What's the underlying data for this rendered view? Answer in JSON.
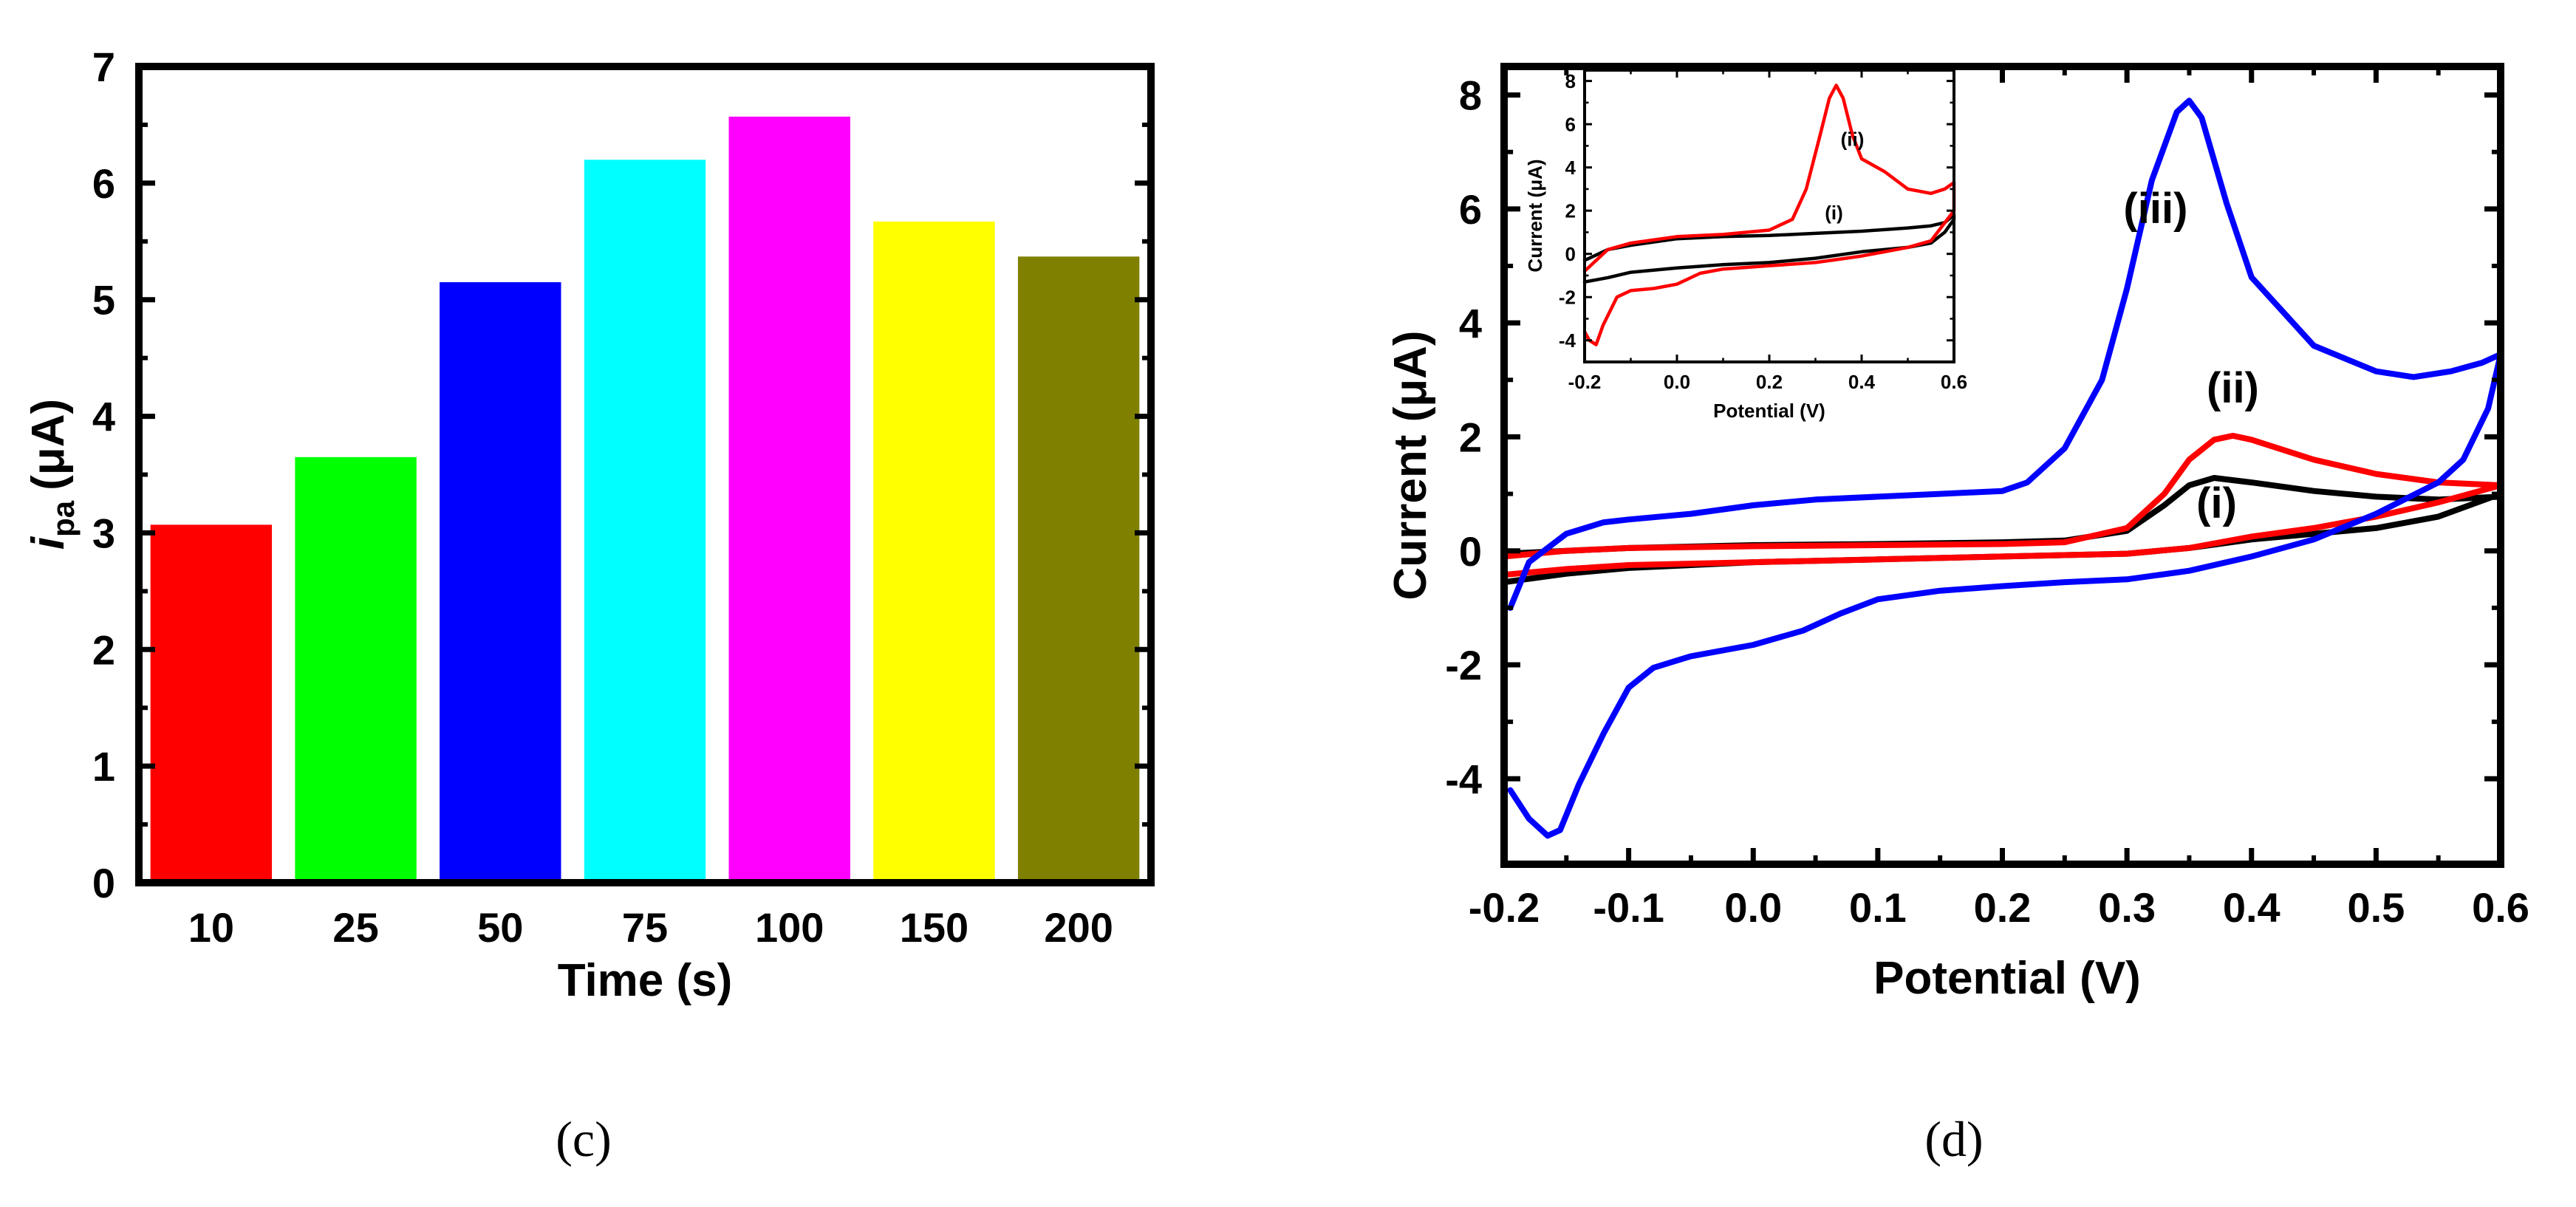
{
  "chart_data": [
    {
      "type": "bar",
      "panel_label": "(c)",
      "categories": [
        "10",
        "25",
        "50",
        "75",
        "100",
        "150",
        "200"
      ],
      "values": [
        3.07,
        3.65,
        5.15,
        6.2,
        6.57,
        5.67,
        5.37
      ],
      "colors": [
        "#ff0000",
        "#00ff00",
        "#0000ff",
        "#00ffff",
        "#ff00ff",
        "#ffff00",
        "#808000"
      ],
      "xlabel": "Time (s)",
      "ylabel": {
        "main": "i",
        "sub": "pa",
        "unit": "(μA)"
      },
      "ylim": [
        0,
        7
      ],
      "yticks": [
        "0",
        "1",
        "2",
        "3",
        "4",
        "5",
        "6",
        "7"
      ]
    },
    {
      "type": "line",
      "panel_label": "(d)",
      "xlabel": "Potential (V)",
      "ylabel": "Current (μA)",
      "xlim": [
        -0.2,
        0.6
      ],
      "ylim": [
        -5.5,
        8.5
      ],
      "xticks": [
        "-0.2",
        "-0.1",
        "0.0",
        "0.1",
        "0.2",
        "0.3",
        "0.4",
        "0.5",
        "0.6"
      ],
      "yticks": [
        "-4",
        "-2",
        "0",
        "2",
        "4",
        "6",
        "8"
      ],
      "series": [
        {
          "name": "(i)",
          "color": "#000000",
          "x": [
            -0.2,
            -0.15,
            -0.1,
            0.0,
            0.1,
            0.2,
            0.25,
            0.3,
            0.33,
            0.35,
            0.37,
            0.4,
            0.45,
            0.5,
            0.55,
            0.6,
            0.6,
            0.55,
            0.5,
            0.45,
            0.4,
            0.35,
            0.3,
            0.2,
            0.1,
            0.0,
            -0.1,
            -0.15,
            -0.2
          ],
          "y": [
            -0.05,
            0.0,
            0.05,
            0.1,
            0.12,
            0.15,
            0.18,
            0.35,
            0.8,
            1.15,
            1.28,
            1.2,
            1.05,
            0.95,
            0.9,
            0.95,
            1.0,
            0.6,
            0.4,
            0.3,
            0.2,
            0.05,
            -0.05,
            -0.1,
            -0.15,
            -0.2,
            -0.3,
            -0.4,
            -0.55
          ]
        },
        {
          "name": "(ii)",
          "color": "#ff0000",
          "x": [
            -0.2,
            -0.15,
            -0.1,
            0.0,
            0.1,
            0.2,
            0.25,
            0.3,
            0.33,
            0.35,
            0.37,
            0.385,
            0.4,
            0.45,
            0.5,
            0.55,
            0.6,
            0.6,
            0.55,
            0.5,
            0.45,
            0.4,
            0.35,
            0.3,
            0.2,
            0.1,
            0.0,
            -0.1,
            -0.15,
            -0.2
          ],
          "y": [
            -0.1,
            0.0,
            0.05,
            0.08,
            0.1,
            0.12,
            0.15,
            0.4,
            1.0,
            1.6,
            1.95,
            2.02,
            1.95,
            1.6,
            1.35,
            1.2,
            1.15,
            1.15,
            0.85,
            0.6,
            0.4,
            0.25,
            0.05,
            -0.05,
            -0.1,
            -0.15,
            -0.2,
            -0.25,
            -0.32,
            -0.42
          ]
        },
        {
          "name": "(iii)",
          "color": "#0000ff",
          "x": [
            -0.195,
            -0.18,
            -0.15,
            -0.12,
            -0.1,
            -0.05,
            0.0,
            0.05,
            0.1,
            0.15,
            0.2,
            0.22,
            0.25,
            0.28,
            0.3,
            0.32,
            0.34,
            0.35,
            0.36,
            0.38,
            0.4,
            0.45,
            0.5,
            0.53,
            0.56,
            0.585,
            0.6,
            0.59,
            0.57,
            0.55,
            0.5,
            0.45,
            0.4,
            0.35,
            0.3,
            0.25,
            0.2,
            0.15,
            0.1,
            0.07,
            0.04,
            0.0,
            -0.05,
            -0.08,
            -0.1,
            -0.12,
            -0.14,
            -0.155,
            -0.165,
            -0.18,
            -0.195
          ],
          "y": [
            -1.0,
            -0.2,
            0.3,
            0.5,
            0.55,
            0.65,
            0.8,
            0.9,
            0.95,
            1.0,
            1.05,
            1.2,
            1.8,
            3.0,
            4.6,
            6.5,
            7.7,
            7.9,
            7.6,
            6.1,
            4.8,
            3.6,
            3.15,
            3.05,
            3.15,
            3.3,
            3.45,
            2.5,
            1.6,
            1.2,
            0.65,
            0.2,
            -0.1,
            -0.35,
            -0.5,
            -0.55,
            -0.62,
            -0.7,
            -0.85,
            -1.1,
            -1.4,
            -1.65,
            -1.85,
            -2.05,
            -2.4,
            -3.2,
            -4.1,
            -4.9,
            -5.0,
            -4.7,
            -4.2
          ]
        }
      ],
      "annotations": [
        {
          "text": "(i)",
          "x": 0.372,
          "y": 0.58
        },
        {
          "text": "(ii)",
          "x": 0.385,
          "y": 2.6
        },
        {
          "text": "(iii)",
          "x": 0.323,
          "y": 5.75
        }
      ],
      "inset": {
        "type": "line",
        "xlabel": "Potential (V)",
        "ylabel": "Current (μA)",
        "xlim": [
          -0.2,
          0.6
        ],
        "ylim": [
          -5,
          8.5
        ],
        "xticks": [
          "-0.2",
          "0.0",
          "0.2",
          "0.4",
          "0.6"
        ],
        "yticks": [
          "-4",
          "-2",
          "0",
          "2",
          "4",
          "6",
          "8"
        ],
        "series": [
          {
            "name": "(i)",
            "color": "#000000",
            "x": [
              -0.2,
              -0.15,
              -0.1,
              0.0,
              0.1,
              0.2,
              0.3,
              0.4,
              0.5,
              0.55,
              0.58,
              0.6,
              0.6,
              0.58,
              0.55,
              0.5,
              0.4,
              0.3,
              0.2,
              0.1,
              0.0,
              -0.1,
              -0.15,
              -0.2
            ],
            "y": [
              -0.3,
              0.2,
              0.4,
              0.7,
              0.8,
              0.85,
              0.95,
              1.05,
              1.2,
              1.3,
              1.45,
              1.8,
              1.6,
              1.0,
              0.5,
              0.3,
              0.1,
              -0.2,
              -0.4,
              -0.5,
              -0.65,
              -0.85,
              -1.1,
              -1.3
            ]
          },
          {
            "name": "(ii)",
            "color": "#ff0000",
            "x": [
              -0.2,
              -0.15,
              -0.1,
              0.0,
              0.1,
              0.2,
              0.25,
              0.28,
              0.31,
              0.33,
              0.345,
              0.36,
              0.38,
              0.4,
              0.45,
              0.5,
              0.55,
              0.58,
              0.6,
              0.6,
              0.55,
              0.5,
              0.45,
              0.4,
              0.35,
              0.3,
              0.2,
              0.1,
              0.05,
              0.0,
              -0.05,
              -0.1,
              -0.13,
              -0.16,
              -0.175,
              -0.19,
              -0.2
            ],
            "y": [
              -0.8,
              0.2,
              0.5,
              0.8,
              0.9,
              1.1,
              1.6,
              3.0,
              5.5,
              7.2,
              7.8,
              7.2,
              5.5,
              4.4,
              3.8,
              3.0,
              2.8,
              3.0,
              3.3,
              2.0,
              0.6,
              0.3,
              0.1,
              -0.1,
              -0.25,
              -0.4,
              -0.55,
              -0.7,
              -0.9,
              -1.4,
              -1.6,
              -1.7,
              -2.0,
              -3.3,
              -4.2,
              -4.0,
              -3.6
            ]
          }
        ],
        "annotations": [
          {
            "text": "(i)",
            "x": 0.34,
            "y": 1.6
          },
          {
            "text": "(ii)",
            "x": 0.38,
            "y": 5.0
          }
        ]
      }
    }
  ]
}
